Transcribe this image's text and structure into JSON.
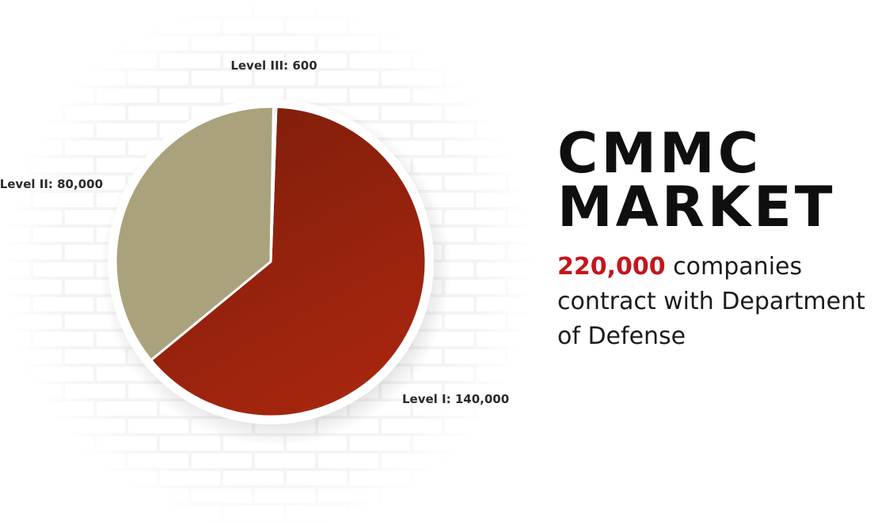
{
  "chart_data": {
    "type": "pie",
    "slices": [
      {
        "label": "Level I",
        "display": "Level I: 140,000",
        "value": 140000,
        "color": "#a8260f"
      },
      {
        "label": "Level II",
        "display": "Level II: 80,000",
        "value": 80000,
        "color": "#a9a27c"
      },
      {
        "label": "Level III",
        "display": "Level III: 600",
        "value": 600,
        "color": "#8f9499"
      }
    ]
  },
  "headline": {
    "line1": "CMMC",
    "line2": "MARKET"
  },
  "subline": {
    "highlight": "220,000",
    "text": " companies contract with Department of Defense"
  },
  "colors": {
    "accent": "#c4161c",
    "heading": "#0f0f0f"
  }
}
